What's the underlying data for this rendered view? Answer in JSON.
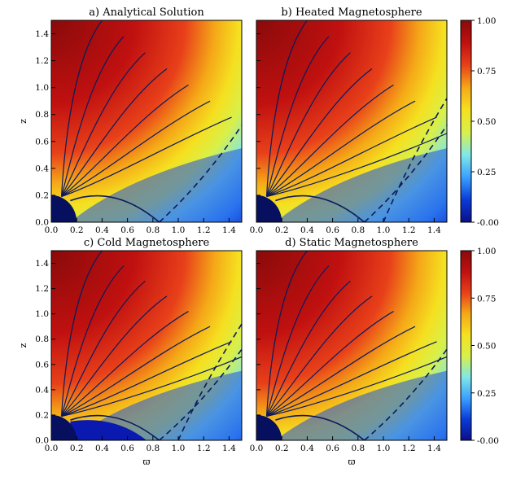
{
  "chart_data": {
    "type": "heatmap",
    "panels": [
      {
        "id": "a",
        "title": "a) Analytical Solution",
        "dead_zone_extent": 0.0,
        "field_line_count": 7,
        "dashed_count": 1
      },
      {
        "id": "b",
        "title": "b) Heated Magnetosphere",
        "dead_zone_extent": 0.0,
        "field_line_count": 8,
        "dashed_count": 2
      },
      {
        "id": "c",
        "title": "c) Cold Magnetosphere",
        "dead_zone_extent": 0.75,
        "field_line_count": 8,
        "dashed_count": 2
      },
      {
        "id": "d",
        "title": "d) Static Magnetosphere",
        "dead_zone_extent": 0.0,
        "field_line_count": 8,
        "dashed_count": 1
      }
    ],
    "xlabel": "ϖ",
    "ylabel": "z",
    "xlim": [
      0.0,
      1.5
    ],
    "ylim": [
      0.0,
      1.5
    ],
    "x_ticks": [
      "0.0",
      "0.2",
      "0.4",
      "0.6",
      "0.8",
      "1.0",
      "1.2",
      "1.4"
    ],
    "y_ticks": [
      "0.0",
      "0.2",
      "0.4",
      "0.6",
      "0.8",
      "1.0",
      "1.2",
      "1.4"
    ],
    "colorbar": {
      "ticks": [
        "1.00",
        "0.75",
        "0.50",
        "0.25",
        "-0.00"
      ],
      "range": [
        0.0,
        1.0
      ],
      "colormap": "rainbow (dark blue → cyan → yellow → red → dark red)"
    },
    "star_radius": 0.2,
    "colors": {
      "field_line": "#0b1a5c",
      "star": "#06105e",
      "cmap_stops": [
        "#0b0f88",
        "#0a3cd8",
        "#3aa0ff",
        "#7fe8e8",
        "#d8f04a",
        "#f5e020",
        "#f5a818",
        "#e8401a",
        "#c01010",
        "#8a0a0a"
      ]
    }
  }
}
